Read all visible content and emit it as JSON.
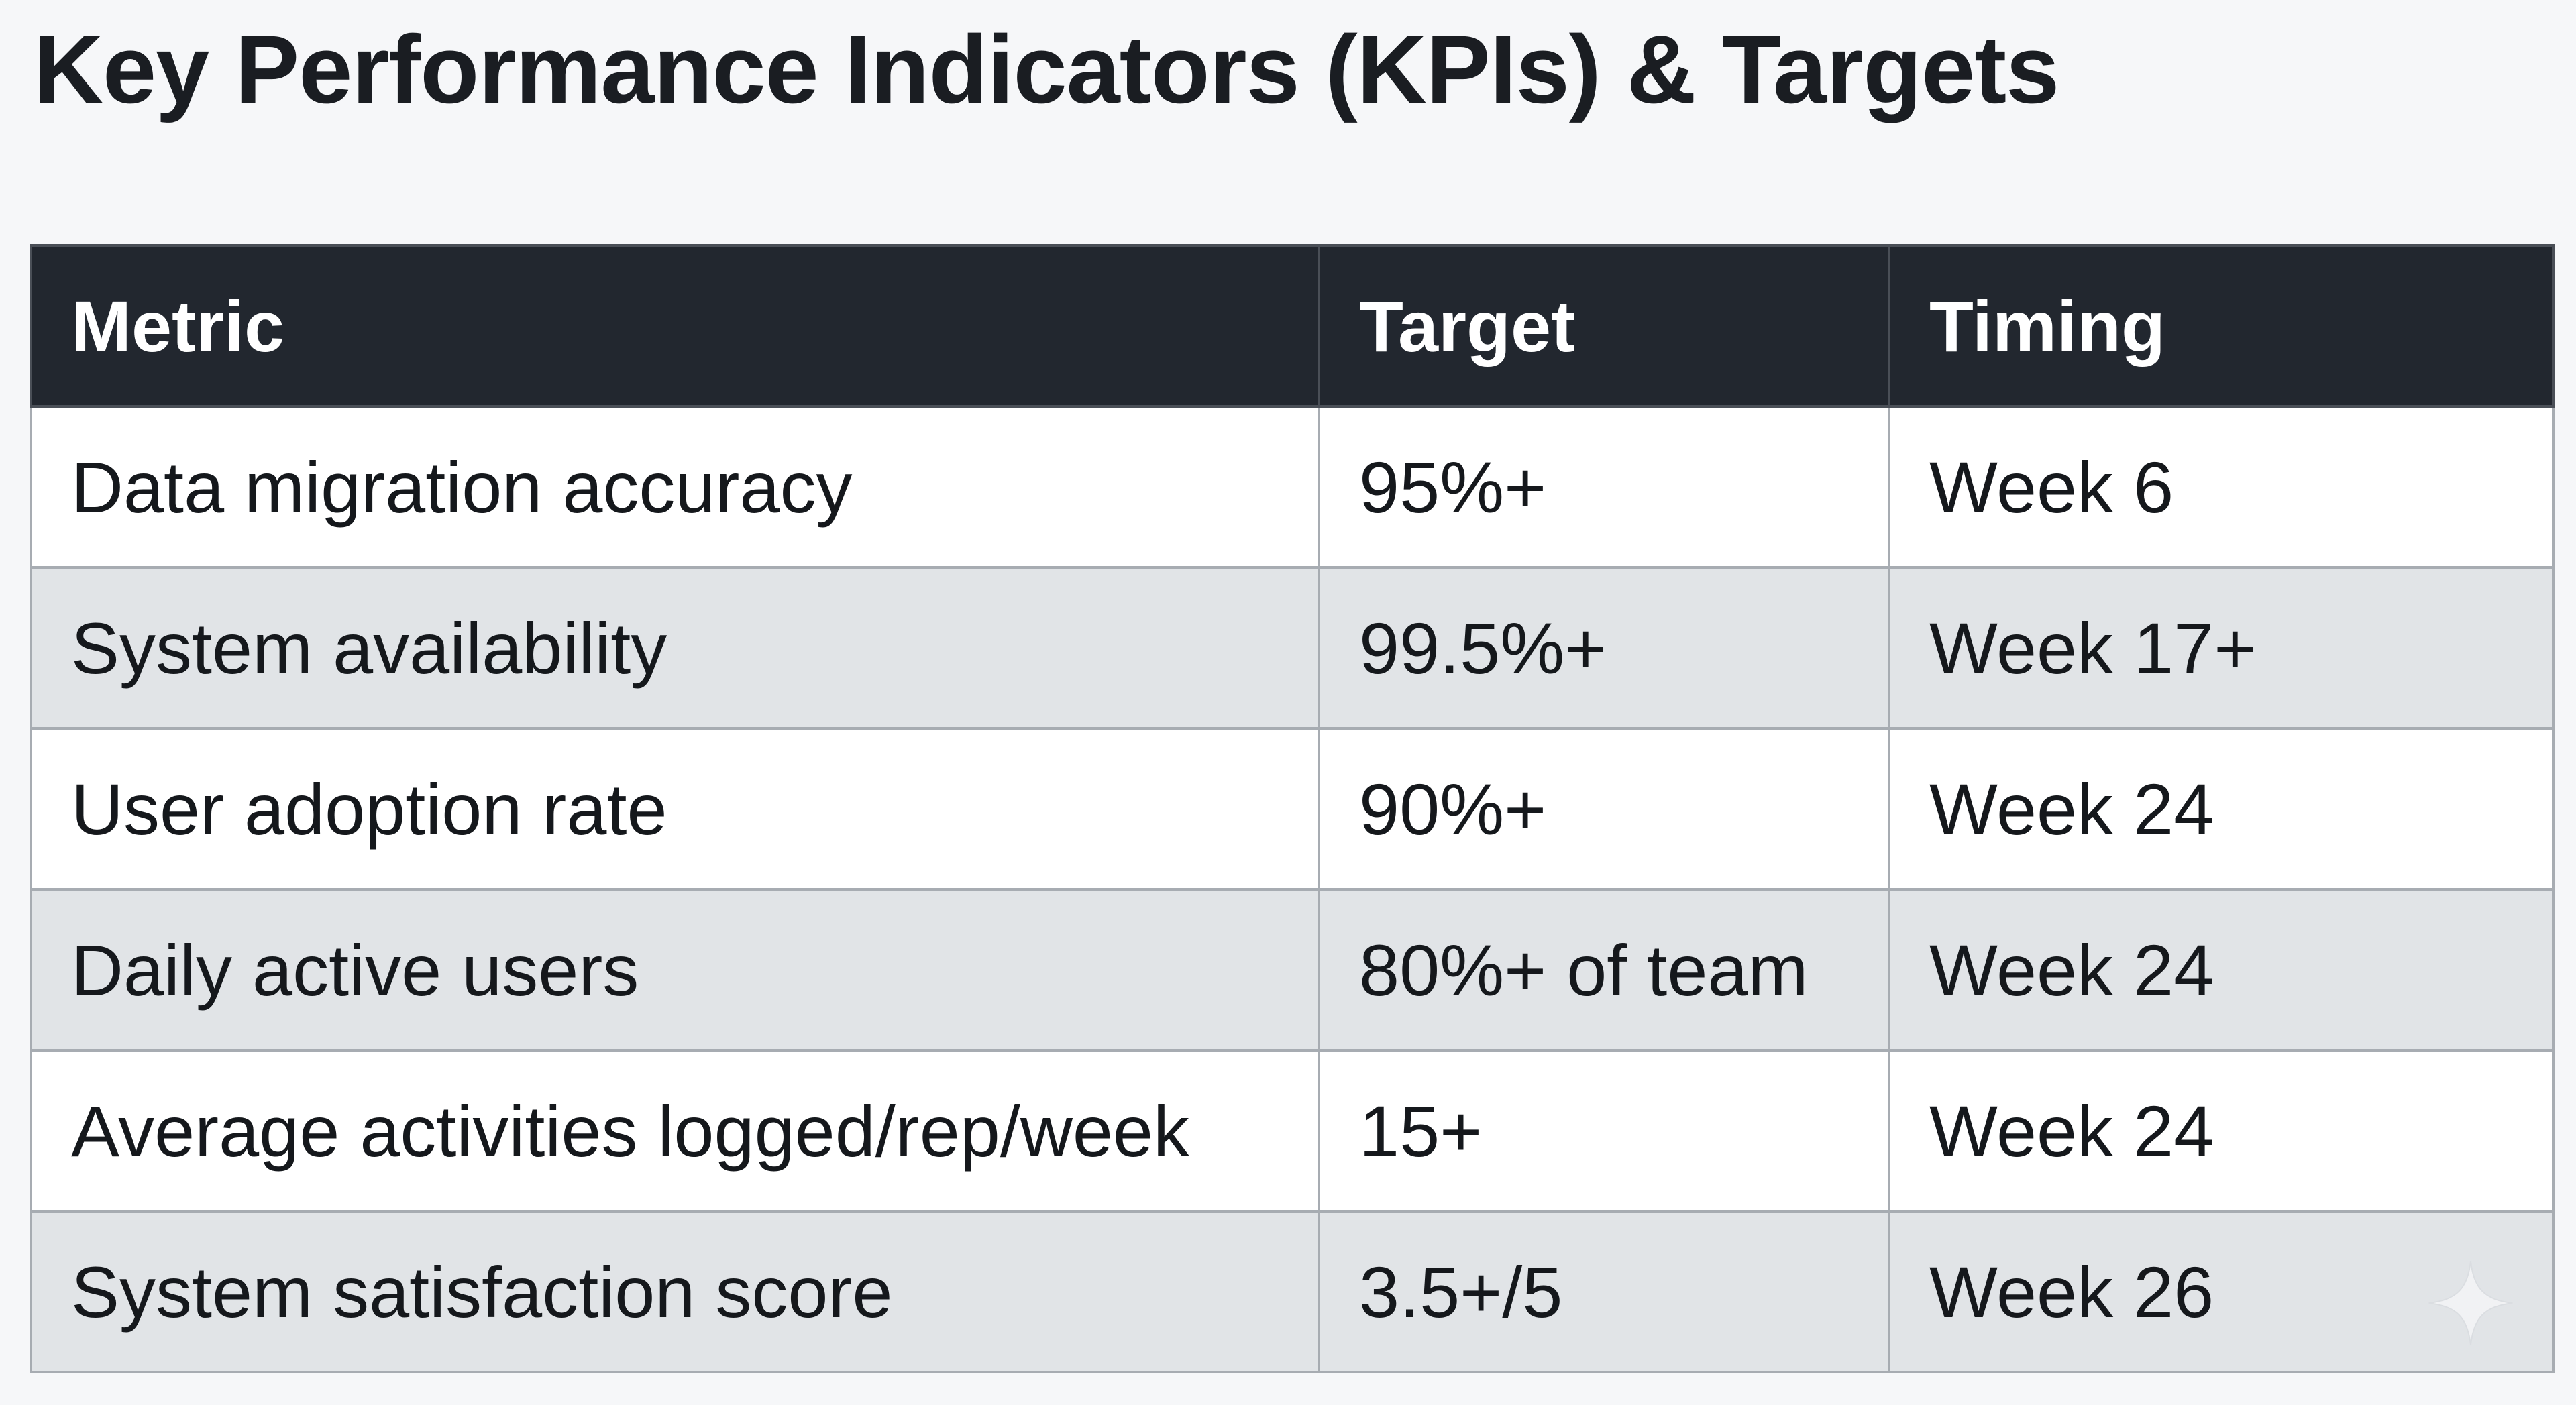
{
  "title": "Key Performance Indicators (KPIs) & Targets",
  "table": {
    "headers": [
      "Metric",
      "Target",
      "Timing"
    ],
    "rows": [
      [
        "Data migration accuracy",
        "95%+",
        "Week 6"
      ],
      [
        "System availability",
        "99.5%+",
        "Week 17+"
      ],
      [
        "User adoption rate",
        "90%+",
        "Week 24"
      ],
      [
        "Daily active users",
        "80%+ of team",
        "Week 24"
      ],
      [
        "Average activities logged/rep/week",
        "15+",
        "Week 24"
      ],
      [
        "System satisfaction score",
        "3.5+/5",
        "Week 26"
      ]
    ]
  },
  "colors": {
    "header_bg": "#22272f",
    "header_text": "#ffffff",
    "row_odd": "#ffffff",
    "row_even": "#e1e4e7",
    "border": "#a7acb2"
  },
  "icons": {
    "watermark": "sparkle-icon"
  }
}
